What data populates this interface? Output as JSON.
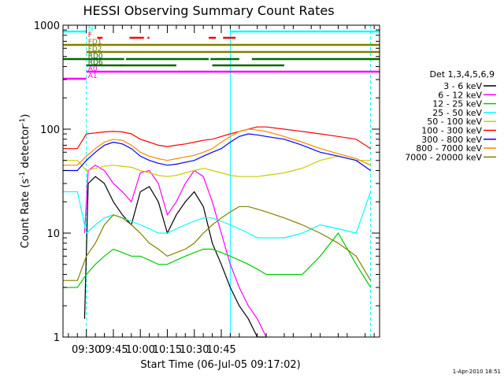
{
  "chart_data": {
    "type": "line",
    "title": "HESSI Observing Summary Count Rates",
    "xlabel": "Start Time (06-Jul-05 09:17:02)",
    "ylabel_main": "Count Rate (s",
    "ylabel_sup1": "-1",
    "ylabel_mid": " detector",
    "ylabel_sup2": "-1",
    "ylabel_end": ")",
    "timestamp": "1-Apr-2010 18:51",
    "y_scale": "log",
    "ylim": [
      1,
      1000
    ],
    "xlim_minutes": [
      557,
      733
    ],
    "x_ticks": [
      {
        "label": "09:30",
        "t": 570
      },
      {
        "label": "09:45",
        "t": 585
      },
      {
        "label": "10:00",
        "t": 600
      },
      {
        "label": "10:15",
        "t": 615
      },
      {
        "label": "10:30",
        "t": 630
      },
      {
        "label": "10:45",
        "t": 645
      }
    ],
    "y_ticks": [
      {
        "label": "1",
        "v": 1
      },
      {
        "label": "10",
        "v": 10
      },
      {
        "label": "100",
        "v": 100
      },
      {
        "label": "1000",
        "v": 1000
      }
    ],
    "legend": {
      "title": "Det 1,3,4,5,6,9",
      "placement": "right",
      "entries": [
        {
          "label": "3 - 6 keV",
          "color": "#000000"
        },
        {
          "label": "6 - 12 keV",
          "color": "#ff00ff"
        },
        {
          "label": "12 - 25 keV",
          "color": "#00cc00"
        },
        {
          "label": "25 - 50 keV",
          "color": "#00ffff"
        },
        {
          "label": "50 - 100 keV",
          "color": "#cccc00"
        },
        {
          "label": "100 - 300 keV",
          "color": "#ff0000"
        },
        {
          "label": "300 - 800 keV",
          "color": "#0000ff"
        },
        {
          "label": "800 - 7000 keV",
          "color": "#ff8800"
        },
        {
          "label": "7000 - 20000 keV",
          "color": "#808000"
        }
      ]
    },
    "flags": [
      {
        "label": "N",
        "color": "#00ffff",
        "segments": [
          [
            557,
            570
          ],
          [
            650,
            733
          ]
        ]
      },
      {
        "label": "F",
        "color": "#ff0000",
        "segments": [
          [
            576,
            579
          ],
          [
            594,
            602
          ],
          [
            604,
            605
          ],
          [
            638,
            642
          ],
          [
            646,
            653
          ]
        ]
      },
      {
        "label": "FD1",
        "color": "#808000",
        "segments": [
          [
            557,
            733
          ]
        ]
      },
      {
        "label": "FD2",
        "color": "#808000",
        "segments": [
          [
            570,
            733
          ]
        ]
      },
      {
        "label": "RD0",
        "color": "#006600",
        "segments": [
          [
            557,
            591
          ],
          [
            592,
            638
          ],
          [
            639,
            655
          ],
          [
            662,
            733
          ]
        ]
      },
      {
        "label": "RD6",
        "color": "#006600",
        "segments": [
          [
            570,
            590
          ],
          [
            589,
            620
          ],
          [
            640,
            680
          ]
        ]
      },
      {
        "label": "A0",
        "color": "#ff00ff",
        "segments": [
          [
            570,
            733
          ]
        ]
      },
      {
        "label": "A1",
        "color": "#ff00ff",
        "segments": [
          [
            557,
            570
          ]
        ]
      }
    ],
    "vlines": [
      {
        "t": 557,
        "style": "solid",
        "color": "#00ffff"
      },
      {
        "t": 570,
        "style": "dashed",
        "color": "#00ffff"
      },
      {
        "t": 650,
        "style": "solid",
        "color": "#00ffff"
      },
      {
        "t": 728,
        "style": "dashed",
        "color": "#00ffff"
      }
    ],
    "series": [
      {
        "name": "3 - 6 keV",
        "color": "#000000",
        "x": [
          569,
          571,
          575,
          580,
          585,
          590,
          595,
          600,
          605,
          610,
          615,
          620,
          625,
          630,
          635,
          640,
          645,
          650,
          655,
          660,
          665,
          670
        ],
        "y": [
          1.5,
          30,
          35,
          30,
          20,
          15,
          12,
          25,
          28,
          20,
          10,
          15,
          20,
          25,
          18,
          8,
          5,
          3,
          2,
          1.5,
          1,
          1
        ]
      },
      {
        "name": "6 - 12 keV",
        "color": "#ff00ff",
        "x": [
          569,
          571,
          575,
          580,
          585,
          590,
          595,
          600,
          605,
          610,
          615,
          620,
          625,
          630,
          635,
          640,
          645,
          650,
          655,
          660,
          665,
          670
        ],
        "y": [
          10,
          40,
          45,
          40,
          30,
          25,
          20,
          38,
          40,
          30,
          15,
          20,
          30,
          40,
          35,
          20,
          10,
          5,
          3,
          2,
          1.5,
          1
        ]
      },
      {
        "name": "12 - 25 keV",
        "color": "#00cc00",
        "x": [
          557,
          565,
          570,
          575,
          580,
          585,
          590,
          595,
          600,
          605,
          610,
          615,
          620,
          625,
          630,
          635,
          640,
          645,
          650,
          655,
          660,
          665,
          670,
          680,
          690,
          700,
          710,
          720,
          728
        ],
        "y": [
          3,
          3,
          4,
          5,
          6,
          7,
          6.5,
          6,
          6,
          5.5,
          5,
          5,
          5.5,
          6,
          6.5,
          7,
          7,
          6.5,
          6,
          5.5,
          5,
          4.5,
          4,
          4,
          4,
          6,
          10,
          5,
          3
        ]
      },
      {
        "name": "25 - 50 keV",
        "color": "#00ffff",
        "x": [
          557,
          565,
          570,
          575,
          580,
          585,
          590,
          595,
          600,
          605,
          610,
          615,
          620,
          625,
          630,
          635,
          640,
          645,
          650,
          655,
          660,
          665,
          670,
          680,
          690,
          700,
          710,
          720,
          728
        ],
        "y": [
          25,
          25,
          10,
          12,
          14,
          15,
          14,
          13,
          12,
          11,
          10,
          10,
          11,
          12,
          13,
          14,
          14,
          13,
          12,
          11,
          10,
          9,
          9,
          9,
          10,
          12,
          11,
          10,
          25
        ]
      },
      {
        "name": "50 - 100 keV",
        "color": "#cccc00",
        "x": [
          557,
          565,
          570,
          575,
          580,
          585,
          590,
          595,
          600,
          605,
          610,
          615,
          620,
          625,
          630,
          635,
          640,
          645,
          650,
          655,
          660,
          665,
          670,
          680,
          690,
          700,
          710,
          720,
          728
        ],
        "y": [
          50,
          50,
          40,
          42,
          44,
          45,
          44,
          43,
          40,
          38,
          36,
          35,
          36,
          38,
          40,
          42,
          40,
          38,
          36,
          35,
          35,
          35,
          36,
          38,
          42,
          50,
          55,
          50,
          50
        ]
      },
      {
        "name": "100 - 300 keV",
        "color": "#ff0000",
        "x": [
          557,
          565,
          570,
          575,
          580,
          585,
          590,
          595,
          600,
          605,
          610,
          615,
          620,
          625,
          630,
          635,
          640,
          645,
          650,
          655,
          660,
          665,
          670,
          680,
          690,
          700,
          710,
          720,
          728
        ],
        "y": [
          65,
          65,
          90,
          92,
          94,
          95,
          94,
          90,
          80,
          75,
          70,
          68,
          70,
          72,
          75,
          78,
          80,
          85,
          90,
          95,
          100,
          105,
          105,
          100,
          95,
          90,
          85,
          80,
          65
        ]
      },
      {
        "name": "300 - 800 keV",
        "color": "#0000ff",
        "x": [
          557,
          565,
          570,
          575,
          580,
          585,
          590,
          595,
          600,
          605,
          610,
          615,
          620,
          625,
          630,
          635,
          640,
          645,
          650,
          655,
          660,
          665,
          670,
          680,
          690,
          700,
          710,
          720,
          728
        ],
        "y": [
          40,
          40,
          50,
          60,
          70,
          75,
          72,
          65,
          55,
          50,
          47,
          45,
          46,
          48,
          50,
          55,
          60,
          65,
          75,
          85,
          90,
          88,
          85,
          80,
          70,
          60,
          55,
          50,
          40
        ]
      },
      {
        "name": "800 - 7000 keV",
        "color": "#ff8800",
        "x": [
          557,
          565,
          570,
          575,
          580,
          585,
          590,
          595,
          600,
          605,
          610,
          615,
          620,
          625,
          630,
          635,
          640,
          645,
          650,
          655,
          660,
          665,
          670,
          680,
          690,
          700,
          710,
          720,
          728
        ],
        "y": [
          45,
          45,
          55,
          65,
          75,
          80,
          78,
          70,
          60,
          55,
          52,
          50,
          52,
          54,
          56,
          60,
          65,
          75,
          85,
          95,
          100,
          98,
          95,
          85,
          75,
          65,
          58,
          52,
          45
        ]
      },
      {
        "name": "7000 - 20000 keV",
        "color": "#808000",
        "x": [
          557,
          565,
          570,
          575,
          580,
          585,
          590,
          595,
          600,
          605,
          610,
          615,
          620,
          625,
          630,
          635,
          640,
          645,
          650,
          655,
          660,
          665,
          670,
          680,
          690,
          700,
          710,
          720,
          728
        ],
        "y": [
          3.5,
          3.5,
          6,
          8,
          12,
          15,
          14,
          12,
          10,
          8,
          7,
          6,
          6.5,
          7,
          8,
          10,
          12,
          14,
          16,
          18,
          18,
          17,
          16,
          14,
          12,
          10,
          8,
          6,
          3.5
        ]
      }
    ]
  }
}
